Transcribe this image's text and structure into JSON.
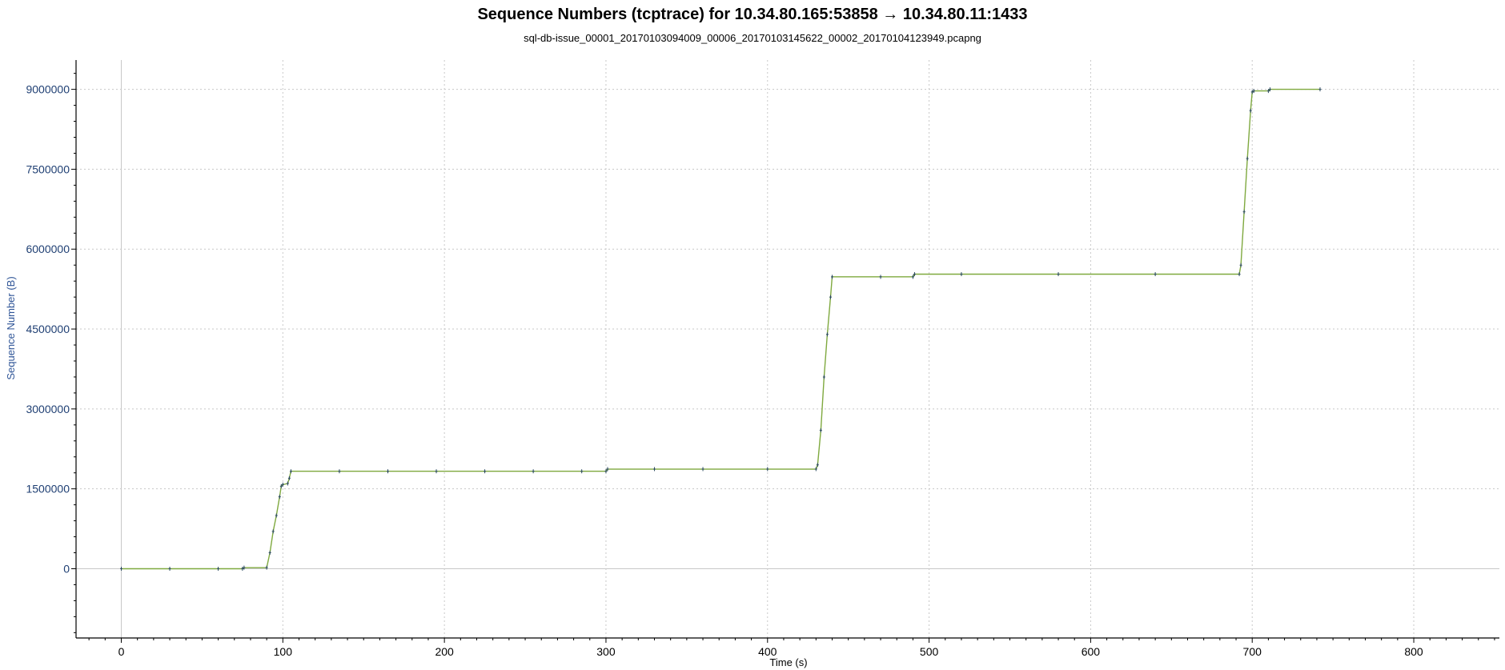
{
  "chart_data": {
    "type": "line",
    "title": "Sequence Numbers (tcptrace) for 10.34.80.165:53858 → 10.34.80.11:1433",
    "subtitle": "sql-db-issue_00001_20170103094009_00006_20170103145622_00002_20170104123949.pcapng",
    "xlabel": "Time (s)",
    "ylabel": "Sequence Number (B)",
    "xlim": [
      -28,
      853
    ],
    "ylim": [
      -1300000,
      9550000
    ],
    "x_ticks": [
      0,
      100,
      200,
      300,
      400,
      500,
      600,
      700,
      800
    ],
    "x_tick_labels": [
      "0",
      "100",
      "200",
      "300",
      "400",
      "500",
      "600",
      "700",
      "800"
    ],
    "y_ticks": [
      0,
      1500000,
      3000000,
      4500000,
      6000000,
      7500000,
      9000000
    ],
    "y_tick_labels": [
      "0",
      "1500000",
      "3000000",
      "4500000",
      "6000000",
      "7500000",
      "9000000"
    ],
    "grid": true,
    "legend": "none",
    "colors": {
      "line": "#7fa93f",
      "marker": "#2c4a60",
      "grid": "#c8c8c8",
      "tick_label": "#1f3f73",
      "axis_label": "#2f5597"
    },
    "series": [
      {
        "x": [
          0,
          30,
          60,
          75,
          76,
          90,
          92,
          94,
          96,
          98,
          99,
          100,
          103,
          104,
          105,
          135,
          165,
          195,
          225,
          255,
          285,
          300,
          301,
          330,
          360,
          400,
          430,
          431,
          433,
          435,
          437,
          439,
          440,
          470,
          490,
          491,
          520,
          580,
          640,
          692,
          693,
          695,
          697,
          699,
          700,
          701,
          710,
          711,
          742
        ],
        "y": [
          0,
          0,
          0,
          0,
          20000,
          20000,
          300000,
          700000,
          1000000,
          1350000,
          1550000,
          1580000,
          1600000,
          1700000,
          1830000,
          1830000,
          1830000,
          1830000,
          1830000,
          1830000,
          1830000,
          1830000,
          1870000,
          1870000,
          1870000,
          1870000,
          1870000,
          1950000,
          2600000,
          3600000,
          4400000,
          5100000,
          5480000,
          5480000,
          5480000,
          5530000,
          5530000,
          5530000,
          5530000,
          5530000,
          5700000,
          6700000,
          7700000,
          8600000,
          8950000,
          8970000,
          8970000,
          9000000,
          9000000
        ]
      }
    ]
  }
}
